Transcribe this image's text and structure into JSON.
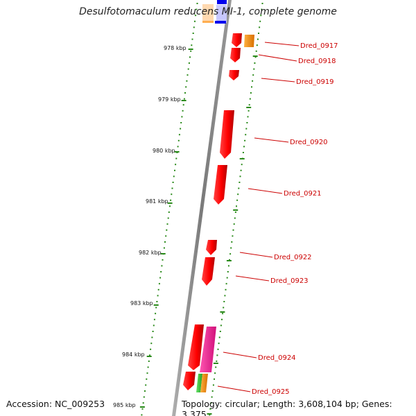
{
  "title": "Desulfotomaculum reducens MI-1, complete genome",
  "accession": "Accession: NC_009253",
  "topology": "Topology: circular; Length: 3,608,104 bp; Genes: 3,375",
  "colors": {
    "backbone": "#8a8a8a",
    "tick": "#2a8a1a",
    "gene_red": "#ff0000",
    "gene_label": "#cc0000",
    "orange": "#ff8c00",
    "magenta": "#ff1493",
    "green": "#33cc33",
    "blue": "#0000ee",
    "peach": "#ffd9b0",
    "lavender": "#c8c8ff"
  },
  "scale_labels": [
    "978 kbp",
    "979 kbp",
    "980 kbp",
    "981 kbp",
    "982 kbp",
    "983 kbp",
    "984 kbp",
    "985 kbp"
  ],
  "gene_labels": [
    "Dred_0917",
    "Dred_0918",
    "Dred_0919",
    "Dred_0920",
    "Dred_0921",
    "Dred_0922",
    "Dred_0923",
    "Dred_0924",
    "Dred_0925"
  ]
}
